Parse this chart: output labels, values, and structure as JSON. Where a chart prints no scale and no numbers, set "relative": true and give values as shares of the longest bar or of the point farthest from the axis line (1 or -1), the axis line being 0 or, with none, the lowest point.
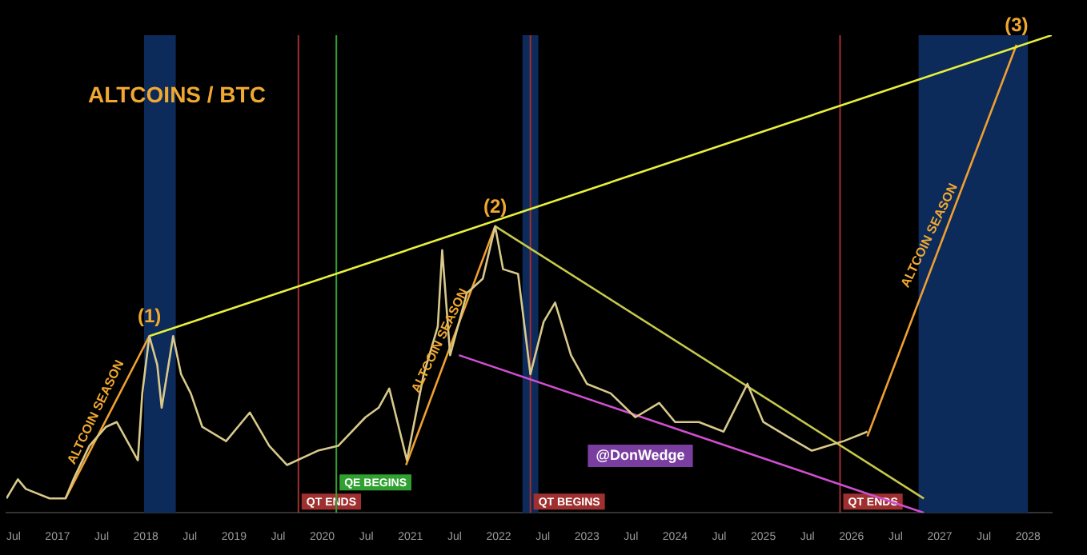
{
  "chart_data": {
    "type": "line",
    "title": "ALTCOINS / BTC",
    "relative": true,
    "marker": "none",
    "line_style": "solid",
    "legend": false,
    "grid": false,
    "xlim": [
      2016.42,
      2028.27
    ],
    "xticks": [
      {
        "value": 2016.5,
        "label": "Jul"
      },
      2017,
      {
        "value": 2017.5,
        "label": "Jul"
      },
      2018,
      {
        "value": 2018.5,
        "label": "Jul"
      },
      2019,
      {
        "value": 2019.5,
        "label": "Jul"
      },
      2020,
      {
        "value": 2020.5,
        "label": "Jul"
      },
      2021,
      {
        "value": 2021.5,
        "label": "Jul"
      },
      2022,
      {
        "value": 2022.5,
        "label": "Jul"
      },
      2023,
      {
        "value": 2023.5,
        "label": "Jul"
      },
      2024,
      {
        "value": 2024.5,
        "label": "Jul"
      },
      2025,
      {
        "value": 2025.5,
        "label": "Jul"
      },
      2026,
      {
        "value": 2026.5,
        "label": "Jul"
      },
      2027,
      {
        "value": 2027.5,
        "label": "Jul"
      },
      2028
    ],
    "series": [
      {
        "color": "#d8c98a",
        "x": [
          2016.42,
          2016.55,
          2016.64,
          2016.91,
          2017.09,
          2017.18,
          2017.36,
          2017.55,
          2017.67,
          2017.82,
          2017.91,
          2017.96,
          2018.04,
          2018.13,
          2018.18,
          2018.31,
          2018.4,
          2018.51,
          2018.64,
          2018.91,
          2019.18,
          2019.4,
          2019.6,
          2019.95,
          2020.18,
          2020.49,
          2020.64,
          2020.76,
          2020.96,
          2021.15,
          2021.31,
          2021.36,
          2021.45,
          2021.64,
          2021.82,
          2021.96,
          2022.05,
          2022.22,
          2022.36,
          2022.51,
          2022.64,
          2022.82,
          2023.0,
          2023.27,
          2023.55,
          2023.82,
          2024.0,
          2024.27,
          2024.55,
          2024.82,
          2025.0,
          2025.27,
          2025.55,
          2025.73,
          2025.91,
          2026.18
        ],
        "values": [
          0.03,
          0.07,
          0.05,
          0.03,
          0.03,
          0.07,
          0.14,
          0.18,
          0.19,
          0.14,
          0.11,
          0.25,
          0.37,
          0.31,
          0.22,
          0.37,
          0.29,
          0.25,
          0.18,
          0.15,
          0.21,
          0.14,
          0.1,
          0.13,
          0.14,
          0.2,
          0.22,
          0.26,
          0.11,
          0.29,
          0.39,
          0.55,
          0.33,
          0.46,
          0.49,
          0.6,
          0.51,
          0.5,
          0.29,
          0.4,
          0.44,
          0.33,
          0.27,
          0.25,
          0.2,
          0.23,
          0.19,
          0.19,
          0.17,
          0.27,
          0.19,
          0.16,
          0.13,
          0.14,
          0.15,
          0.17
        ]
      },
      {
        "color": "#e6f03c",
        "x": [
          2018.04,
          2028.27
        ],
        "values": [
          0.37,
          1.0
        ]
      },
      {
        "color": "#c8c84a",
        "x": [
          2021.96,
          2026.82
        ],
        "values": [
          0.6,
          0.03
        ]
      },
      {
        "color": "#d04fd0",
        "x": [
          2021.55,
          2026.82
        ],
        "values": [
          0.33,
          0.0
        ]
      },
      {
        "color": "#f0a030",
        "x": [
          2017.09,
          2018.04
        ],
        "values": [
          0.03,
          0.37
        ]
      },
      {
        "color": "#f0a030",
        "x": [
          2020.95,
          2021.96
        ],
        "values": [
          0.1,
          0.6
        ]
      },
      {
        "color": "#f0a030",
        "x": [
          2026.18,
          2027.87
        ],
        "values": [
          0.16,
          0.98
        ]
      }
    ],
    "ref_lines": [
      {
        "axis": "x",
        "value": 2019.73,
        "label": "QT ENDS",
        "color": "#a03030"
      },
      {
        "axis": "x",
        "value": 2020.16,
        "label": "QE BEGINS",
        "color": "#30a030"
      },
      {
        "axis": "x",
        "value": 2022.36,
        "label": "QT BEGINS",
        "color": "#a03030"
      },
      {
        "axis": "x",
        "value": 2025.87,
        "label": "QT ENDS",
        "color": "#a03030"
      }
    ],
    "bands": [
      {
        "axis": "x",
        "from": 2017.98,
        "to": 2018.34,
        "color": "#0c2a5a"
      },
      {
        "axis": "x",
        "from": 2022.27,
        "to": 2022.45,
        "color": "#0c2a5a"
      },
      {
        "axis": "x",
        "from": 2026.76,
        "to": 2028.0,
        "color": "#0c2a5a"
      }
    ],
    "annotations": [
      {
        "text": "(1)",
        "x": 2018.04,
        "y": 0.37
      },
      {
        "text": "(2)",
        "x": 2021.96,
        "y": 0.6
      },
      {
        "text": "(3)",
        "x": 2027.87,
        "y": 0.98
      },
      {
        "text": "ALTCOIN SEASON",
        "x": 2017.55,
        "y": 0.2
      },
      {
        "text": "ALTCOIN SEASON",
        "x": 2021.45,
        "y": 0.35
      },
      {
        "text": "ALTCOIN SEASON",
        "x": 2027.0,
        "y": 0.57
      },
      "@DonWedge"
    ]
  }
}
